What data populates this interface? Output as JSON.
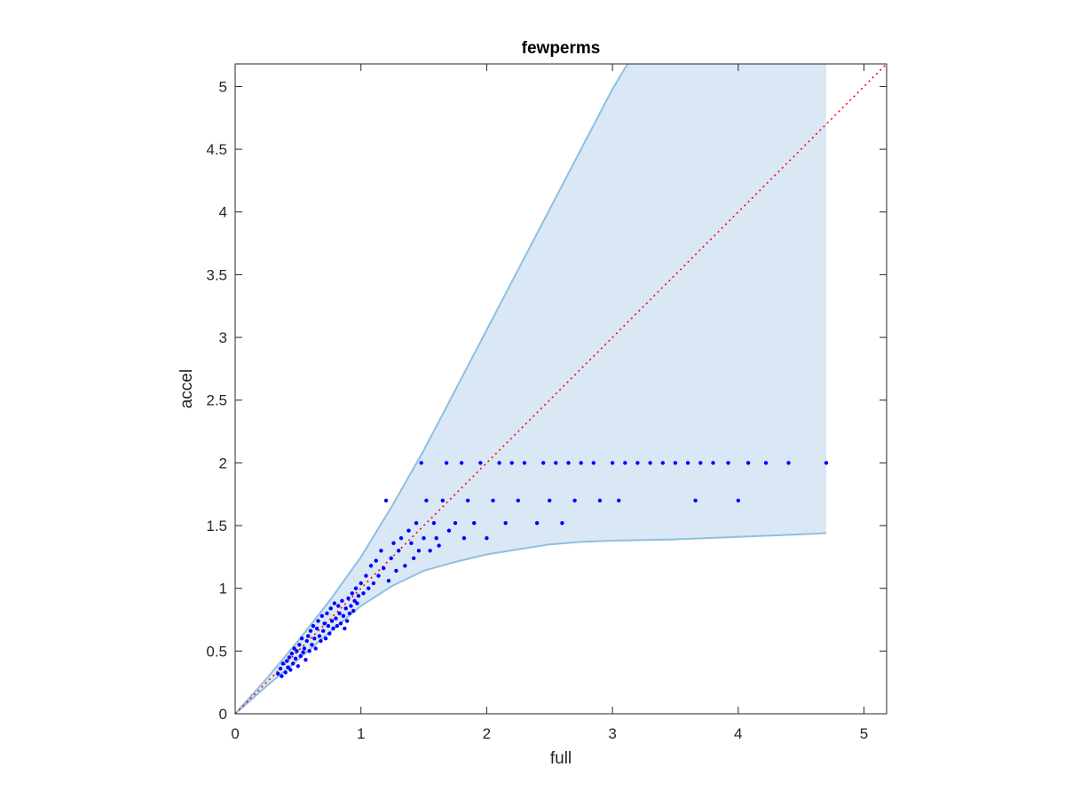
{
  "chart_data": {
    "type": "scatter",
    "title": "fewperms",
    "xlabel": "full",
    "ylabel": "accel",
    "xlim": [
      0,
      5.18
    ],
    "ylim": [
      0,
      5.18
    ],
    "x_ticks": [
      "0",
      "1",
      "2",
      "3",
      "4",
      "5"
    ],
    "y_ticks": [
      "0",
      "0.5",
      "1",
      "1.5",
      "2",
      "2.5",
      "3",
      "3.5",
      "4",
      "4.5",
      "5"
    ],
    "x_tick_values": [
      0,
      1,
      2,
      3,
      4,
      5
    ],
    "y_tick_values": [
      0,
      0.5,
      1,
      1.5,
      2,
      2.5,
      3,
      3.5,
      4,
      4.5,
      5
    ],
    "grid": false,
    "colors": {
      "points": "#0000ff",
      "band_fill": "#d9e8f4",
      "band_edge": "#8fbfe0",
      "reference_line": "#ff0000",
      "axes": "#262626"
    },
    "reference_line": {
      "style": "dotted",
      "from": [
        0,
        0
      ],
      "to": [
        5.18,
        5.18
      ]
    },
    "band": {
      "upper": [
        [
          0,
          0
        ],
        [
          0.25,
          0.28
        ],
        [
          0.5,
          0.58
        ],
        [
          0.75,
          0.9
        ],
        [
          1.0,
          1.25
        ],
        [
          1.25,
          1.66
        ],
        [
          1.5,
          2.1
        ],
        [
          1.75,
          2.58
        ],
        [
          2.0,
          3.06
        ],
        [
          2.25,
          3.54
        ],
        [
          2.5,
          4.02
        ],
        [
          2.75,
          4.5
        ],
        [
          3.0,
          4.98
        ],
        [
          3.12,
          5.18
        ],
        [
          4.7,
          5.18
        ],
        [
          4.7,
          1.44
        ]
      ],
      "lower": [
        [
          0,
          0
        ],
        [
          0.25,
          0.22
        ],
        [
          0.5,
          0.43
        ],
        [
          0.75,
          0.65
        ],
        [
          1.0,
          0.86
        ],
        [
          1.25,
          1.02
        ],
        [
          1.5,
          1.14
        ],
        [
          1.75,
          1.21
        ],
        [
          2.0,
          1.27
        ],
        [
          2.25,
          1.31
        ],
        [
          2.5,
          1.35
        ],
        [
          2.75,
          1.37
        ],
        [
          3.0,
          1.38
        ],
        [
          3.5,
          1.39
        ],
        [
          4.0,
          1.41
        ],
        [
          4.5,
          1.43
        ],
        [
          4.7,
          1.44
        ]
      ]
    },
    "series": [
      {
        "values": [
          [
            0.34,
            0.32
          ],
          [
            0.36,
            0.36
          ],
          [
            0.37,
            0.3
          ],
          [
            0.38,
            0.4
          ],
          [
            0.4,
            0.33
          ],
          [
            0.41,
            0.42
          ],
          [
            0.42,
            0.37
          ],
          [
            0.43,
            0.45
          ],
          [
            0.44,
            0.35
          ],
          [
            0.45,
            0.48
          ],
          [
            0.46,
            0.4
          ],
          [
            0.47,
            0.52
          ],
          [
            0.48,
            0.44
          ],
          [
            0.49,
            0.5
          ],
          [
            0.5,
            0.38
          ],
          [
            0.51,
            0.55
          ],
          [
            0.52,
            0.46
          ],
          [
            0.53,
            0.6
          ],
          [
            0.54,
            0.49
          ],
          [
            0.55,
            0.52
          ],
          [
            0.56,
            0.43
          ],
          [
            0.57,
            0.58
          ],
          [
            0.58,
            0.62
          ],
          [
            0.59,
            0.5
          ],
          [
            0.6,
            0.66
          ],
          [
            0.61,
            0.55
          ],
          [
            0.62,
            0.7
          ],
          [
            0.63,
            0.6
          ],
          [
            0.64,
            0.52
          ],
          [
            0.65,
            0.68
          ],
          [
            0.66,
            0.74
          ],
          [
            0.67,
            0.62
          ],
          [
            0.68,
            0.58
          ],
          [
            0.69,
            0.78
          ],
          [
            0.7,
            0.66
          ],
          [
            0.71,
            0.72
          ],
          [
            0.72,
            0.6
          ],
          [
            0.73,
            0.8
          ],
          [
            0.74,
            0.7
          ],
          [
            0.75,
            0.64
          ],
          [
            0.76,
            0.84
          ],
          [
            0.77,
            0.74
          ],
          [
            0.78,
            0.68
          ],
          [
            0.79,
            0.88
          ],
          [
            0.8,
            0.76
          ],
          [
            0.81,
            0.7
          ],
          [
            0.82,
            0.86
          ],
          [
            0.83,
            0.8
          ],
          [
            0.84,
            0.72
          ],
          [
            0.85,
            0.9
          ],
          [
            0.86,
            0.78
          ],
          [
            0.87,
            0.68
          ],
          [
            0.88,
            0.84
          ],
          [
            0.89,
            0.74
          ],
          [
            0.9,
            0.92
          ],
          [
            0.91,
            0.8
          ],
          [
            0.92,
            0.86
          ],
          [
            0.93,
            0.96
          ],
          [
            0.94,
            0.82
          ],
          [
            0.95,
            0.9
          ],
          [
            0.96,
            1.0
          ],
          [
            0.97,
            0.88
          ],
          [
            0.98,
            0.94
          ],
          [
            1.0,
            1.04
          ],
          [
            1.02,
            0.96
          ],
          [
            1.04,
            1.1
          ],
          [
            1.06,
            1.0
          ],
          [
            1.08,
            1.18
          ],
          [
            1.1,
            1.04
          ],
          [
            1.12,
            1.22
          ],
          [
            1.14,
            1.1
          ],
          [
            1.16,
            1.3
          ],
          [
            1.18,
            1.16
          ],
          [
            1.2,
            1.7
          ],
          [
            1.22,
            1.06
          ],
          [
            1.24,
            1.24
          ],
          [
            1.26,
            1.36
          ],
          [
            1.28,
            1.14
          ],
          [
            1.3,
            1.3
          ],
          [
            1.32,
            1.4
          ],
          [
            1.35,
            1.18
          ],
          [
            1.38,
            1.46
          ],
          [
            1.4,
            1.36
          ],
          [
            1.42,
            1.24
          ],
          [
            1.44,
            1.52
          ],
          [
            1.46,
            1.3
          ],
          [
            1.48,
            2.0
          ],
          [
            1.5,
            1.4
          ],
          [
            1.52,
            1.7
          ],
          [
            1.55,
            1.3
          ],
          [
            1.58,
            1.52
          ],
          [
            1.6,
            1.4
          ],
          [
            1.62,
            1.34
          ],
          [
            1.65,
            1.7
          ],
          [
            1.68,
            2.0
          ],
          [
            1.7,
            1.46
          ],
          [
            1.75,
            1.52
          ],
          [
            1.8,
            2.0
          ],
          [
            1.82,
            1.4
          ],
          [
            1.85,
            1.7
          ],
          [
            1.9,
            1.52
          ],
          [
            1.95,
            2.0
          ],
          [
            2.0,
            1.4
          ],
          [
            2.05,
            1.7
          ],
          [
            2.1,
            2.0
          ],
          [
            2.15,
            1.52
          ],
          [
            2.2,
            2.0
          ],
          [
            2.25,
            1.7
          ],
          [
            2.3,
            2.0
          ],
          [
            2.4,
            1.52
          ],
          [
            2.45,
            2.0
          ],
          [
            2.5,
            1.7
          ],
          [
            2.55,
            2.0
          ],
          [
            2.6,
            1.52
          ],
          [
            2.65,
            2.0
          ],
          [
            2.7,
            1.7
          ],
          [
            2.75,
            2.0
          ],
          [
            2.85,
            2.0
          ],
          [
            2.9,
            1.7
          ],
          [
            3.0,
            2.0
          ],
          [
            3.05,
            1.7
          ],
          [
            3.1,
            2.0
          ],
          [
            3.2,
            2.0
          ],
          [
            3.3,
            2.0
          ],
          [
            3.4,
            2.0
          ],
          [
            3.5,
            2.0
          ],
          [
            3.6,
            2.0
          ],
          [
            3.66,
            1.7
          ],
          [
            3.7,
            2.0
          ],
          [
            3.8,
            2.0
          ],
          [
            3.92,
            2.0
          ],
          [
            4.0,
            1.7
          ],
          [
            4.08,
            2.0
          ],
          [
            4.22,
            2.0
          ],
          [
            4.4,
            2.0
          ],
          [
            4.7,
            2.0
          ]
        ]
      }
    ]
  }
}
